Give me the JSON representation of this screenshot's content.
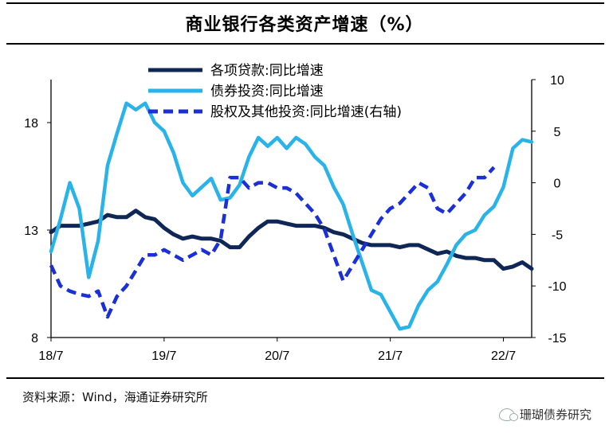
{
  "header": {
    "title": "商业银行各类资产增速（%）"
  },
  "footer": {
    "source": "资料来源：Wind，海通证券研究所",
    "watermark": "珊瑚债券研究"
  },
  "chart_data": {
    "type": "line",
    "title": "商业银行各类资产增速（%）",
    "x_tick_labels": [
      "18/7",
      "19/7",
      "20/7",
      "21/7",
      "22/7"
    ],
    "x_tick_index": [
      0,
      12,
      24,
      36,
      48
    ],
    "left_axis": {
      "ylim": [
        8,
        20
      ],
      "ticks": [
        8,
        13,
        18
      ]
    },
    "right_axis": {
      "ylim": [
        -15,
        10
      ],
      "ticks": [
        -15,
        -10,
        -5,
        0,
        5,
        10
      ]
    },
    "series": [
      {
        "name": "各项贷款:同比增速",
        "axis": "left",
        "color": "#0f2757",
        "style": "solid",
        "values": [
          12.9,
          13.2,
          13.2,
          13.2,
          13.3,
          13.4,
          13.7,
          13.6,
          13.6,
          13.9,
          13.6,
          13.5,
          13.1,
          12.8,
          12.6,
          12.7,
          12.6,
          12.6,
          12.5,
          12.2,
          12.2,
          12.7,
          13.1,
          13.4,
          13.4,
          13.3,
          13.2,
          13.2,
          13.2,
          13.1,
          12.9,
          12.8,
          12.6,
          12.4,
          12.3,
          12.3,
          12.3,
          12.2,
          12.3,
          12.3,
          12.1,
          11.9,
          12.0,
          11.8,
          11.7,
          11.7,
          11.6,
          11.6,
          11.2,
          11.3,
          11.5,
          11.2
        ]
      },
      {
        "name": "债券投资:同比增速",
        "axis": "left",
        "color": "#29b3e8",
        "style": "solid",
        "values": [
          12.0,
          13.5,
          15.2,
          14.0,
          10.8,
          12.5,
          16.0,
          17.5,
          18.9,
          18.6,
          18.9,
          18.0,
          17.6,
          16.6,
          15.2,
          14.6,
          15.0,
          15.4,
          14.4,
          14.5,
          15.1,
          16.4,
          17.3,
          16.9,
          17.3,
          16.8,
          17.3,
          17.0,
          16.4,
          16.0,
          15.0,
          14.2,
          12.8,
          11.5,
          10.2,
          10.0,
          9.2,
          8.4,
          8.5,
          9.5,
          10.2,
          10.6,
          11.4,
          12.3,
          12.8,
          13.0,
          13.7,
          14.1,
          15.0,
          16.8,
          17.2,
          17.1
        ]
      },
      {
        "name": "股权及其他投资:同比增速(右轴)",
        "axis": "right",
        "color": "#1a2fd6",
        "style": "dashed",
        "values": [
          -8,
          -10,
          -10.5,
          -10.8,
          -11,
          -10.5,
          -13,
          -11,
          -10,
          -8.5,
          -7,
          -7,
          -6.5,
          -7,
          -7.5,
          -7,
          -6.5,
          -7,
          -5.5,
          0.5,
          0.5,
          -0.5,
          0,
          0,
          -0.5,
          -0.5,
          -1,
          -2,
          -3,
          -4.5,
          -7,
          -9.5,
          -8,
          -6.5,
          -5,
          -3.5,
          -2.5,
          -2,
          -1,
          0,
          -0.5,
          -2.5,
          -3,
          -2,
          -1,
          0.5,
          0.5,
          1.5
        ]
      }
    ]
  }
}
